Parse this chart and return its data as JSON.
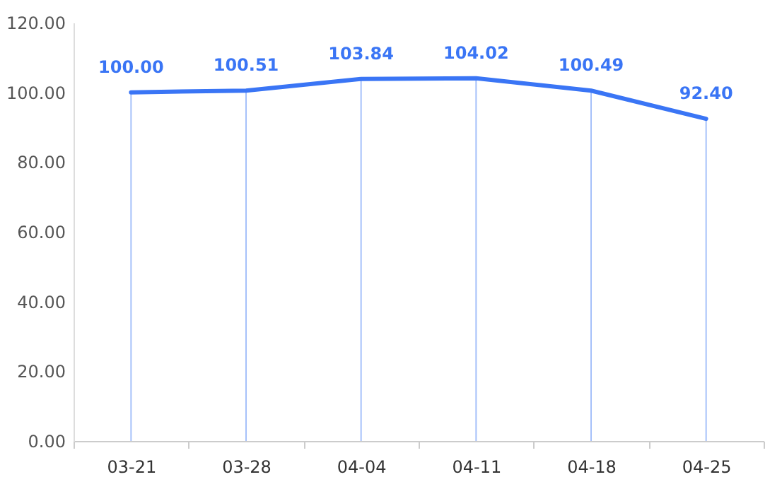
{
  "chart_data": {
    "type": "line",
    "categories": [
      "03-21",
      "03-28",
      "04-04",
      "04-11",
      "04-18",
      "04-25"
    ],
    "series": [
      {
        "color": "#3a75f5",
        "values": [
          100.0,
          100.51,
          103.84,
          104.02,
          100.49,
          92.4
        ]
      }
    ],
    "ylim": [
      0,
      120
    ],
    "yticks": [
      {
        "value": 0,
        "label": "0.00"
      },
      {
        "value": 20,
        "label": "20.00"
      },
      {
        "value": 40,
        "label": "40.00"
      },
      {
        "value": 60,
        "label": "60.00"
      },
      {
        "value": 80,
        "label": "80.00"
      },
      {
        "value": 100,
        "label": "100.00"
      },
      {
        "value": 120,
        "label": "120.00"
      }
    ],
    "value_labels": [
      "100.00",
      "100.51",
      "103.84",
      "104.02",
      "100.49",
      "92.40"
    ],
    "grid": "x",
    "legend": false,
    "marker": "none"
  }
}
